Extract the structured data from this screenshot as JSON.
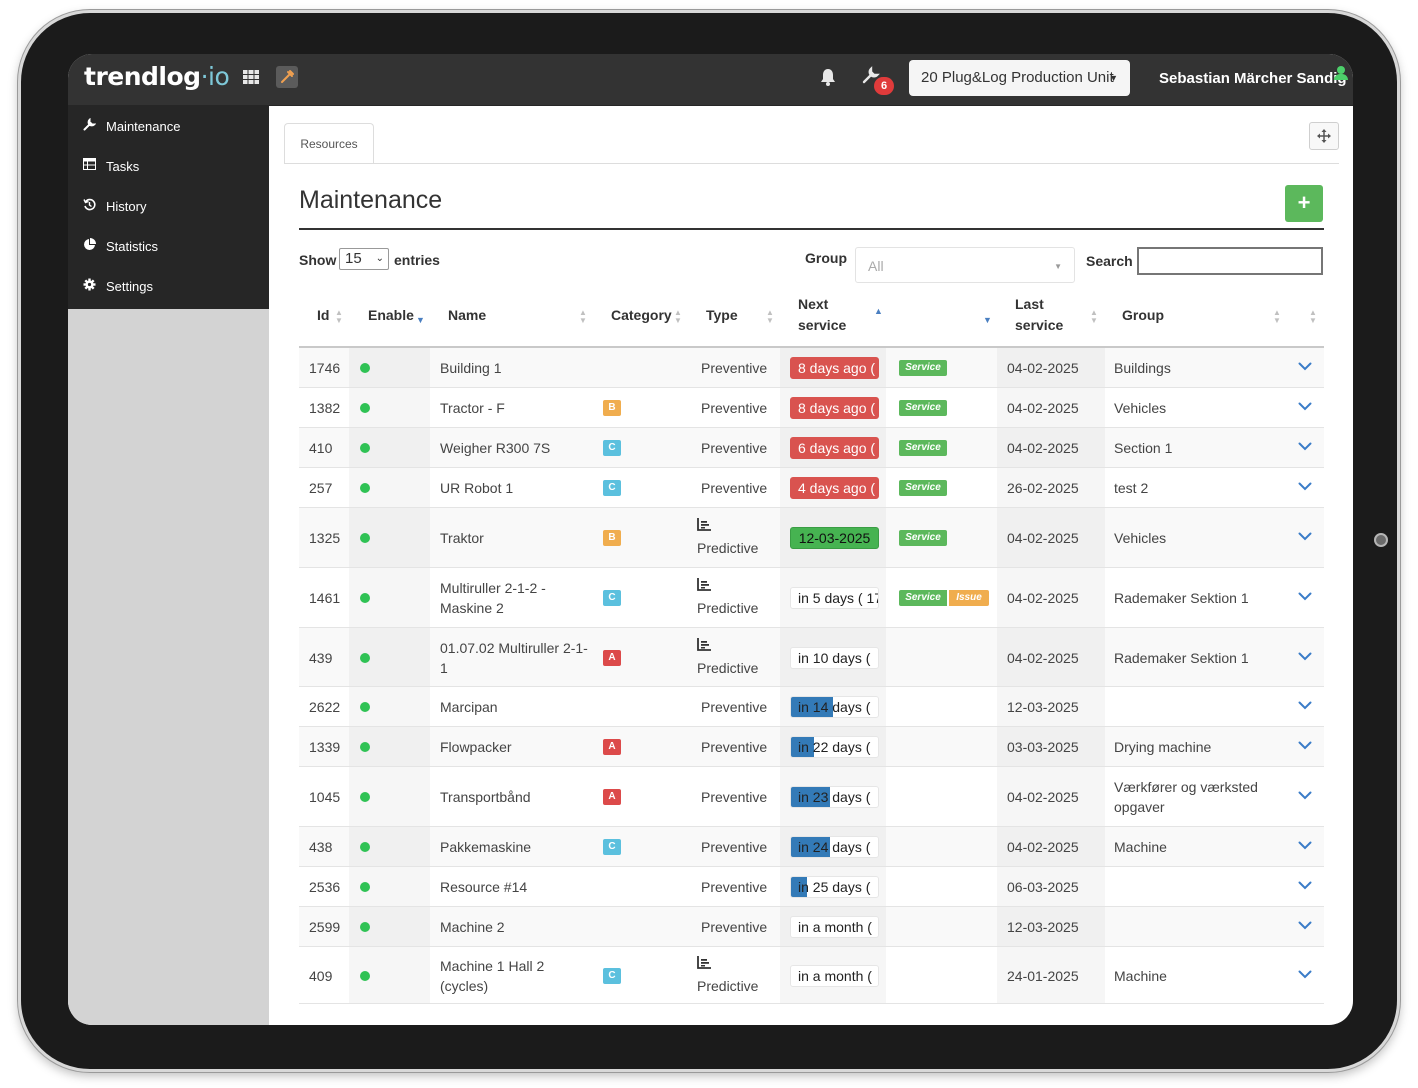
{
  "header": {
    "logo_main": "trendlog",
    "logo_dot": "·",
    "logo_io": "io",
    "notification_count": "6",
    "production_unit": "20 Plug&Log Production Unit",
    "user_name": "Sebastian Märcher Sandig"
  },
  "sidebar": {
    "items": [
      {
        "label": "Maintenance",
        "icon": "wrench-icon"
      },
      {
        "label": "Tasks",
        "icon": "table-icon"
      },
      {
        "label": "History",
        "icon": "history-icon"
      },
      {
        "label": "Statistics",
        "icon": "pie-chart-icon"
      },
      {
        "label": "Settings",
        "icon": "gear-icon"
      }
    ]
  },
  "tabs": [
    {
      "label": "Resources"
    }
  ],
  "page": {
    "title": "Maintenance",
    "add_label": "+"
  },
  "controls": {
    "show_label": "Show",
    "show_value": "15",
    "entries_label": "entries",
    "group_label": "Group",
    "group_value": "All",
    "search_label": "Search",
    "search_value": ""
  },
  "table": {
    "columns": {
      "id": "Id",
      "enable": "Enable",
      "name": "Name",
      "category": "Category",
      "type": "Type",
      "next_service_1": "Next",
      "next_service_2": "service",
      "last_service_1": "Last",
      "last_service_2": "service",
      "group": "Group"
    },
    "rows": [
      {
        "id": "1746",
        "name": "Building 1",
        "name2": "",
        "category": "",
        "type": "Preventive",
        "predictive": false,
        "next_service": "8 days ago (",
        "status": "overdue",
        "progress": 1,
        "tags": [
          "Service"
        ],
        "last_service": "04-02-2025",
        "group": "Buildings",
        "group2": ""
      },
      {
        "id": "1382",
        "name": "Tractor - F",
        "name2": "",
        "category": "B",
        "type": "Preventive",
        "predictive": false,
        "next_service": "8 days ago (",
        "status": "overdue",
        "progress": 1,
        "tags": [
          "Service"
        ],
        "last_service": "04-02-2025",
        "group": "Vehicles",
        "group2": ""
      },
      {
        "id": "410",
        "name": "Weigher R300 7S",
        "name2": "",
        "category": "C",
        "type": "Preventive",
        "predictive": false,
        "next_service": "6 days ago (",
        "status": "overdue",
        "progress": 1,
        "tags": [
          "Service"
        ],
        "last_service": "04-02-2025",
        "group": "Section 1",
        "group2": ""
      },
      {
        "id": "257",
        "name": "UR Robot 1",
        "name2": "",
        "category": "C",
        "type": "Preventive",
        "predictive": false,
        "next_service": "4 days ago (",
        "status": "overdue",
        "progress": 1,
        "tags": [
          "Service"
        ],
        "last_service": "26-02-2025",
        "group": "test 2",
        "group2": ""
      },
      {
        "id": "1325",
        "name": "Traktor",
        "name2": "",
        "category": "B",
        "type": "Predictive",
        "predictive": true,
        "next_service": "12-03-2025",
        "status": "due",
        "progress": 1,
        "tags": [
          "Service"
        ],
        "last_service": "04-02-2025",
        "group": "Vehicles",
        "group2": ""
      },
      {
        "id": "1461",
        "name": "Multiruller 2-1-2 -",
        "name2": "Maskine 2",
        "category": "C",
        "type": "Predictive",
        "predictive": true,
        "next_service": "in 5 days ( 17-",
        "status": "upcoming",
        "progress": 0,
        "tags": [
          "Service",
          "Issue"
        ],
        "last_service": "04-02-2025",
        "group": "Rademaker Sektion 1",
        "group2": ""
      },
      {
        "id": "439",
        "name": "01.07.02 Multiruller 2-1-",
        "name2": "1",
        "category": "A",
        "type": "Predictive",
        "predictive": true,
        "next_service": "in 10 days (",
        "status": "upcoming",
        "progress": 0,
        "tags": [],
        "last_service": "04-02-2025",
        "group": "Rademaker Sektion 1",
        "group2": ""
      },
      {
        "id": "2622",
        "name": "Marcipan",
        "name2": "",
        "category": "",
        "type": "Preventive",
        "predictive": false,
        "next_service": "in 14 days (",
        "status": "upcoming",
        "progress": 0.48,
        "tags": [],
        "last_service": "12-03-2025",
        "group": "",
        "group2": ""
      },
      {
        "id": "1339",
        "name": "Flowpacker",
        "name2": "",
        "category": "A",
        "type": "Preventive",
        "predictive": false,
        "next_service": "in 22 days (",
        "status": "upcoming",
        "progress": 0.27,
        "tags": [],
        "last_service": "03-03-2025",
        "group": "Drying machine",
        "group2": ""
      },
      {
        "id": "1045",
        "name": "Transportbånd",
        "name2": "",
        "category": "A",
        "type": "Preventive",
        "predictive": false,
        "next_service": "in 23 days (",
        "status": "upcoming",
        "progress": 0.45,
        "tags": [],
        "last_service": "04-02-2025",
        "group": "Værkfører og værksted",
        "group2": "opgaver"
      },
      {
        "id": "438",
        "name": "Pakkemaskine",
        "name2": "",
        "category": "C",
        "type": "Preventive",
        "predictive": false,
        "next_service": "in 24 days (",
        "status": "upcoming",
        "progress": 0.45,
        "tags": [],
        "last_service": "04-02-2025",
        "group": "Machine",
        "group2": ""
      },
      {
        "id": "2536",
        "name": "Resource #14",
        "name2": "",
        "category": "",
        "type": "Preventive",
        "predictive": false,
        "next_service": "in 25 days (",
        "status": "upcoming",
        "progress": 0.18,
        "tags": [],
        "last_service": "06-03-2025",
        "group": "",
        "group2": ""
      },
      {
        "id": "2599",
        "name": "Machine 2",
        "name2": "",
        "category": "",
        "type": "Preventive",
        "predictive": false,
        "next_service": "in a month (",
        "status": "upcoming",
        "progress": 0,
        "tags": [],
        "last_service": "12-03-2025",
        "group": "",
        "group2": ""
      },
      {
        "id": "409",
        "name": "Machine 1 Hall 2",
        "name2": "(cycles)",
        "category": "C",
        "type": "Predictive",
        "predictive": true,
        "next_service": "in a month (",
        "status": "upcoming",
        "progress": 0,
        "tags": [],
        "last_service": "24-01-2025",
        "group": "Machine",
        "group2": ""
      }
    ]
  },
  "colors": {
    "topbar": "#333333",
    "sidebar": "#262626",
    "overdue": "#d9534f",
    "due": "#46b351",
    "progress": "#337ab7",
    "enabled_dot": "#2fc254",
    "service_tag": "#5cb85c",
    "issue_tag": "#f0ad4e"
  }
}
